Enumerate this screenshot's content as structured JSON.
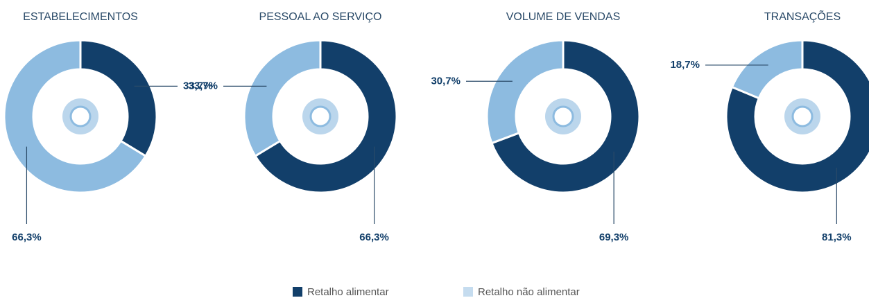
{
  "chart_data": [
    {
      "type": "donut",
      "title": "ESTABELECIMENTOS",
      "categories": [
        "Retalho alimentar",
        "Retalho não alimentar"
      ],
      "values": [
        33.7,
        66.3
      ],
      "value_labels": [
        "33,7%",
        "66,3%"
      ],
      "colors": [
        "#123f6a",
        "#8dbbe0"
      ]
    },
    {
      "type": "donut",
      "title": "PESSOAL AO SERVIÇO",
      "categories": [
        "Retalho alimentar",
        "Retalho não alimentar"
      ],
      "values": [
        66.3,
        33.7
      ],
      "value_labels": [
        "66,3%",
        "33,7%"
      ],
      "colors": [
        "#123f6a",
        "#8dbbe0"
      ]
    },
    {
      "type": "donut",
      "title": "VOLUME DE VENDAS",
      "categories": [
        "Retalho alimentar",
        "Retalho não alimentar"
      ],
      "values": [
        69.3,
        30.7
      ],
      "value_labels": [
        "69,3%",
        "30,7%"
      ],
      "colors": [
        "#123f6a",
        "#8dbbe0"
      ]
    },
    {
      "type": "donut",
      "title": "TRANSAÇÕES",
      "categories": [
        "Retalho alimentar",
        "Retalho não alimentar"
      ],
      "values": [
        81.3,
        18.7
      ],
      "value_labels": [
        "81,3%",
        "18,7%"
      ],
      "colors": [
        "#123f6a",
        "#8dbbe0"
      ]
    }
  ]
}
